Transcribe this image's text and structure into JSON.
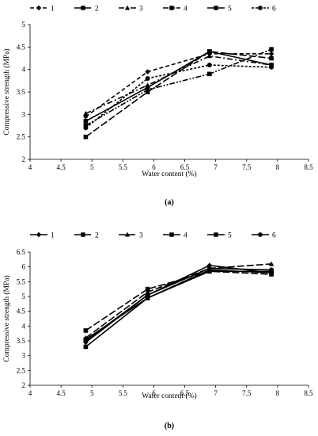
{
  "chart_data": [
    {
      "type": "line",
      "title": "",
      "caption": "(a)",
      "xlabel": "Water content (%)",
      "ylabel": "Compressive strength (MPa)",
      "xlim": [
        4,
        8.5
      ],
      "ylim": [
        2,
        5
      ],
      "xticks": [
        "4",
        "4.5",
        "5",
        "5.5",
        "6",
        "6.5",
        "7",
        "7.5",
        "8",
        "8.5"
      ],
      "yticks": [
        "2",
        "2.5",
        "3",
        "3.5",
        "4",
        "4.5",
        "5"
      ],
      "grid": false,
      "legend_position": "top",
      "x": [
        4.9,
        5.9,
        6.9,
        7.9
      ],
      "series": [
        {
          "name": "1",
          "marker": "diamond",
          "dash": "dash",
          "values": [
            2.95,
            3.95,
            4.35,
            4.35
          ]
        },
        {
          "name": "2",
          "marker": "square",
          "dash": "longdash",
          "values": [
            2.5,
            3.5,
            4.4,
            4.25
          ]
        },
        {
          "name": "3",
          "marker": "triangle",
          "dash": "dashdot",
          "values": [
            3.02,
            3.65,
            4.3,
            4.1
          ]
        },
        {
          "name": "4",
          "marker": "square",
          "dash": "dashdotdot",
          "values": [
            2.75,
            3.55,
            3.9,
            4.45
          ]
        },
        {
          "name": "5",
          "marker": "square",
          "dash": "solid",
          "values": [
            2.85,
            3.6,
            4.4,
            4.1
          ]
        },
        {
          "name": "6",
          "marker": "circle",
          "dash": "shortdash",
          "values": [
            2.7,
            3.8,
            4.1,
            4.05
          ]
        }
      ]
    },
    {
      "type": "line",
      "title": "",
      "caption": "(b)",
      "xlabel": "Water content (%)",
      "ylabel": "Compressive strength (MPa)",
      "xlim": [
        4,
        8.5
      ],
      "ylim": [
        2,
        6.5
      ],
      "xticks": [
        "4",
        "4.5",
        "5",
        "5.5",
        "6",
        "6.5",
        "7",
        "7.5",
        "8",
        "8.5"
      ],
      "yticks": [
        "2",
        "2.5",
        "3",
        "3.5",
        "4",
        "4.5",
        "5",
        "5.5",
        "6",
        "6.5"
      ],
      "grid": false,
      "legend_position": "top",
      "x": [
        4.9,
        5.9,
        6.9,
        7.9
      ],
      "series": [
        {
          "name": "1",
          "marker": "diamond",
          "dash": "solid",
          "values": [
            3.45,
            5.05,
            6.05,
            5.8
          ]
        },
        {
          "name": "2",
          "marker": "square",
          "dash": "longdash",
          "values": [
            3.85,
            5.25,
            5.85,
            5.75
          ]
        },
        {
          "name": "3",
          "marker": "triangle",
          "dash": "longdash",
          "values": [
            3.6,
            5.15,
            5.95,
            6.1
          ]
        },
        {
          "name": "4",
          "marker": "square",
          "dash": "solid",
          "values": [
            3.55,
            4.95,
            5.85,
            5.85
          ]
        },
        {
          "name": "5",
          "marker": "square",
          "dash": "solid",
          "values": [
            3.3,
            4.95,
            5.9,
            5.8
          ]
        },
        {
          "name": "6",
          "marker": "circle",
          "dash": "solid",
          "values": [
            3.5,
            5.05,
            5.95,
            5.9
          ]
        }
      ]
    }
  ]
}
